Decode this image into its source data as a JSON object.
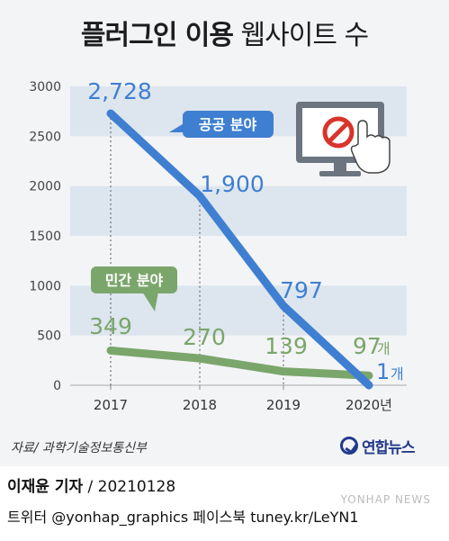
{
  "title": {
    "bold": "플러그인 이용",
    "light": "웹사이트 수"
  },
  "chart_data": {
    "type": "line",
    "x": [
      "2017",
      "2018",
      "2019",
      "2020년"
    ],
    "ylim": [
      0,
      3000
    ],
    "yticks": [
      "0",
      "500",
      "1000",
      "1500",
      "2000",
      "2500",
      "3000"
    ],
    "grid": false,
    "series": [
      {
        "name": "공공 분야",
        "values": [
          2728,
          1900,
          797,
          1
        ],
        "labels": [
          "2,728",
          "1,900",
          "797",
          "1"
        ],
        "unit": "개",
        "color": "#3f7fd1"
      },
      {
        "name": "민간 분야",
        "values": [
          349,
          270,
          139,
          97
        ],
        "labels": [
          "349",
          "270",
          "139",
          "97"
        ],
        "unit": "개",
        "color": "#7ba66b"
      }
    ]
  },
  "source": "자료/ 과학기술정보통신부",
  "logo": "연합뉴스",
  "credit": {
    "reporter": "이재윤 기자",
    "date": " / 20210128"
  },
  "sns": "트위터 @yonhap_graphics  페이스북 tuney.kr/LeYN1",
  "watermark": "YONHAP NEWS"
}
